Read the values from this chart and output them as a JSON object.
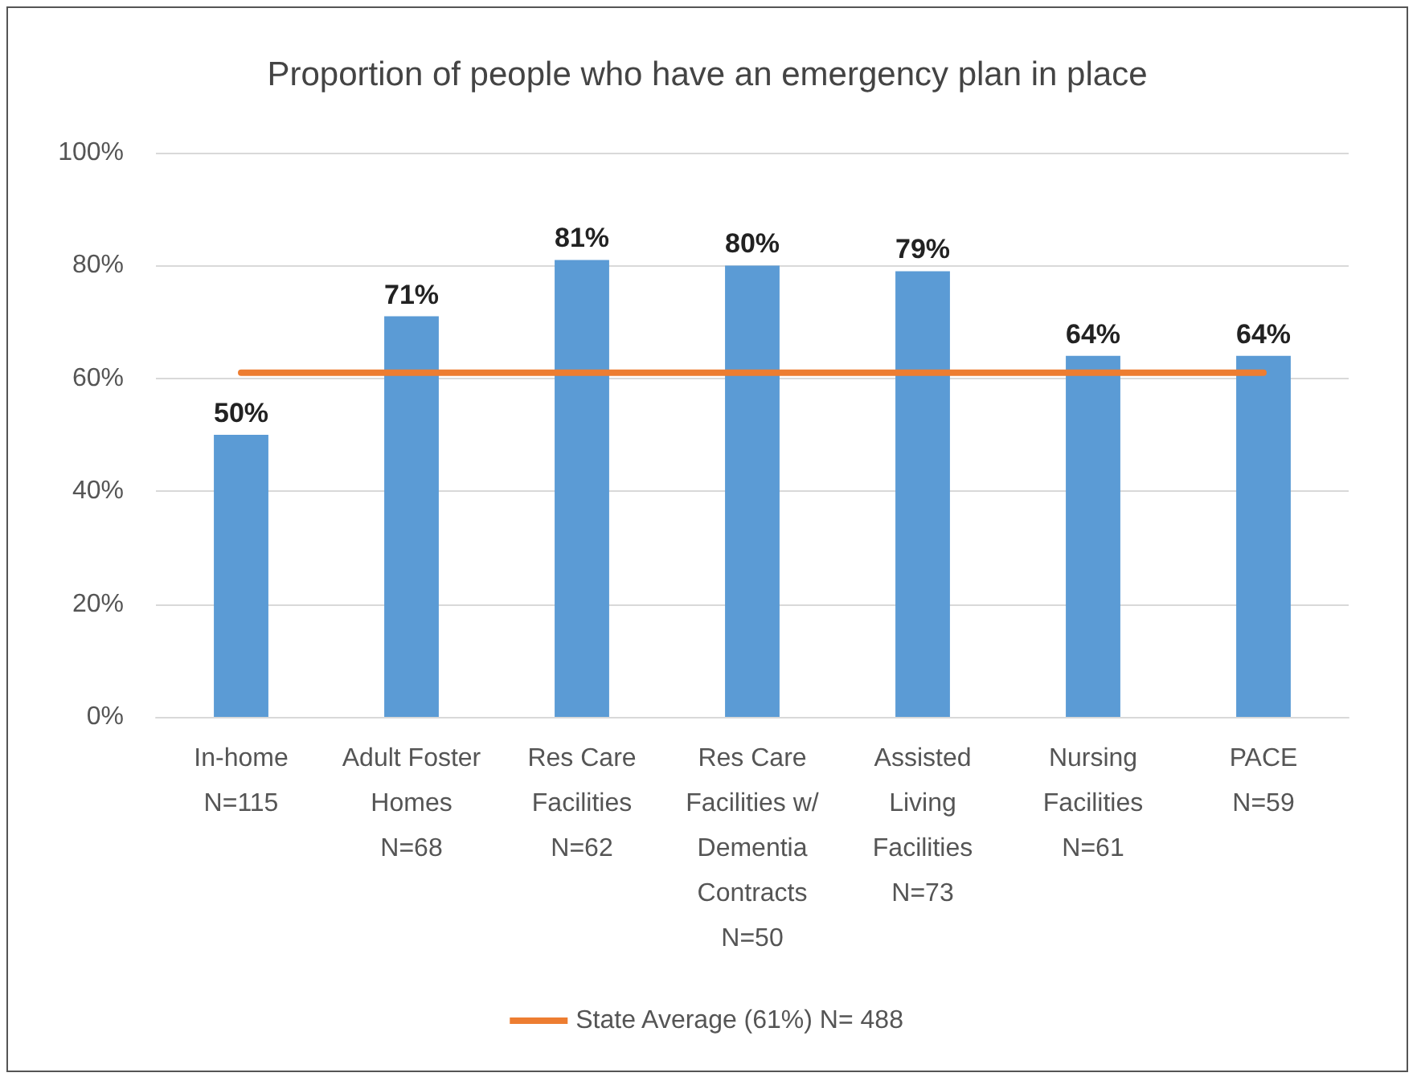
{
  "chart_data": {
    "type": "bar",
    "title": "Proportion of people who have an emergency plan in place",
    "categories": [
      "In-home\nN=115",
      "Adult Foster\nHomes\nN=68",
      "Res Care\nFacilities\nN=62",
      "Res Care\nFacilities w/\nDementia\nContracts\nN=50",
      "Assisted\nLiving\nFacilities\nN=73",
      "Nursing\nFacilities\nN=61",
      "PACE\nN=59"
    ],
    "series": [
      {
        "color": "#5b9bd5",
        "values": [
          50,
          71,
          81,
          80,
          79,
          64,
          64
        ],
        "value_labels": [
          "50%",
          "71%",
          "81%",
          "80%",
          "79%",
          "64%",
          "64%"
        ]
      },
      {
        "type": "line",
        "name": "State Average (61%) N= 488",
        "color": "#ed7d31",
        "values": [
          61,
          61,
          61,
          61,
          61,
          61,
          61
        ]
      }
    ],
    "ylim": [
      0,
      100
    ],
    "yticks": [
      {
        "value": 0,
        "label": "0%"
      },
      {
        "value": 20,
        "label": "20%"
      },
      {
        "value": 40,
        "label": "40%"
      },
      {
        "value": 60,
        "label": "60%"
      },
      {
        "value": 80,
        "label": "80%"
      },
      {
        "value": 100,
        "label": "100%"
      }
    ],
    "grid": "y",
    "legend": "bottom",
    "marker": "none",
    "line_style": "solid"
  }
}
